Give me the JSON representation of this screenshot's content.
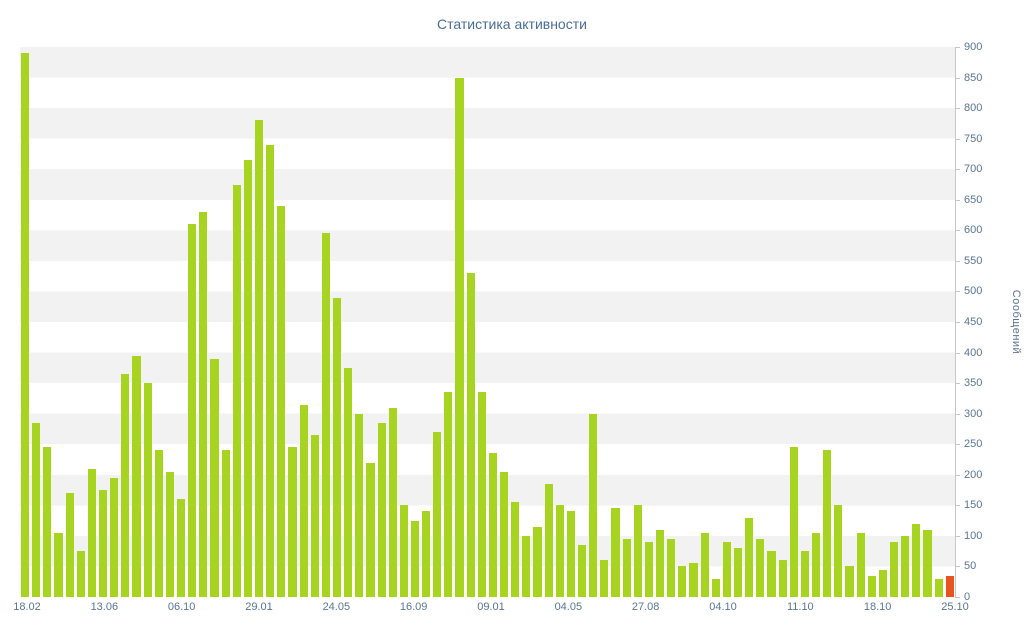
{
  "title": "Статистика активности",
  "chart_data": {
    "type": "bar",
    "title": "Статистика активности",
    "xlabel": "",
    "ylabel": "Сообщений",
    "ylim": [
      0,
      900
    ],
    "y_tick_step": 50,
    "grid": "striped-horizontal-bands",
    "legend": "off",
    "x_tick_labels": [
      "18.02",
      "13.06",
      "06.10",
      "29.01",
      "24.05",
      "16.09",
      "09.01",
      "04.05",
      "27.08",
      "04.10",
      "11.10",
      "18.10",
      "25.10"
    ],
    "values": [
      890,
      285,
      245,
      105,
      170,
      75,
      210,
      175,
      195,
      365,
      395,
      350,
      240,
      205,
      160,
      610,
      630,
      390,
      240,
      675,
      715,
      780,
      740,
      640,
      245,
      315,
      265,
      595,
      490,
      375,
      300,
      220,
      285,
      310,
      150,
      125,
      140,
      270,
      335,
      850,
      530,
      335,
      235,
      205,
      155,
      100,
      115,
      185,
      150,
      140,
      85,
      300,
      60,
      145,
      95,
      150,
      90,
      110,
      95,
      50,
      55,
      105,
      30,
      90,
      80,
      130,
      95,
      75,
      60,
      245,
      75,
      105,
      240,
      150,
      50,
      105,
      35,
      45,
      90,
      100,
      120,
      110,
      30,
      35
    ],
    "colors": {
      "bar": "#a7d321",
      "last_bar": "#e8541f",
      "title_text": "#4a6d96",
      "axis_label_text": "#5a7693",
      "stripe": "#f2f2f2",
      "background": "#ffffff",
      "axis_line": "#c7c7c7"
    }
  }
}
